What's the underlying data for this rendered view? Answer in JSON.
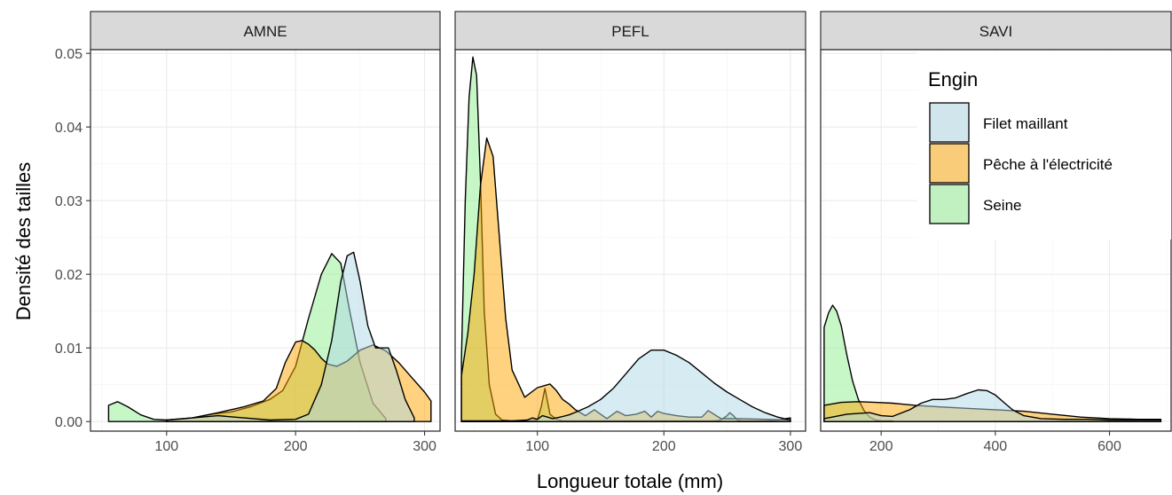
{
  "chart_data": {
    "type": "area",
    "subtype": "density-facets",
    "xlabel": "Longueur totale (mm)",
    "ylabel": "Densité des tailles",
    "ylim": [
      -0.0013,
      0.0505
    ],
    "yticks": [
      0.0,
      0.01,
      0.02,
      0.03,
      0.04,
      0.05
    ],
    "ytick_labels": [
      "0.00",
      "0.01",
      "0.02",
      "0.03",
      "0.04",
      "0.05"
    ],
    "grid": true,
    "legend": {
      "title": "Engin",
      "position": "top-right",
      "entries": [
        {
          "label": "Filet maillant",
          "color": "#add8e6"
        },
        {
          "label": "Pêche à l'électricité",
          "color": "#ffa500"
        },
        {
          "label": "Seine",
          "color": "#90ee90"
        }
      ]
    },
    "colors": {
      "Filet maillant": "#add8e6",
      "Pêche à l'électricité": "#ffa500",
      "Seine": "#90ee90"
    },
    "facets": [
      {
        "label": "AMNE",
        "xlim": [
          41,
          312
        ],
        "xticks": [
          100,
          200,
          300
        ],
        "xtick_labels": [
          "100",
          "200",
          "300"
        ],
        "series": [
          {
            "name": "Seine",
            "x": [
              55,
              62,
              70,
              80,
              90,
              100,
              110,
              120,
              135,
              150,
              165,
              180,
              190,
              200,
              210,
              220,
              228,
              235,
              242,
              250,
              260,
              270
            ],
            "y": [
              0.0022,
              0.0027,
              0.002,
              0.0009,
              0.0003,
              0.0002,
              0.0003,
              0.0005,
              0.001,
              0.0013,
              0.002,
              0.003,
              0.0042,
              0.0075,
              0.014,
              0.02,
              0.0228,
              0.0215,
              0.015,
              0.008,
              0.0025,
              0.0004
            ]
          },
          {
            "name": "Pêche à l'électricité",
            "x": [
              100,
              120,
              140,
              160,
              175,
              185,
              192,
              200,
              205,
              210,
              215,
              220,
              225,
              232,
              240,
              250,
              260,
              270,
              280,
              290,
              300,
              305
            ],
            "y": [
              0.0002,
              0.0005,
              0.0012,
              0.002,
              0.0028,
              0.0045,
              0.008,
              0.0108,
              0.011,
              0.0105,
              0.0097,
              0.0086,
              0.0078,
              0.0075,
              0.0082,
              0.0097,
              0.0104,
              0.0096,
              0.008,
              0.006,
              0.004,
              0.0028
            ]
          },
          {
            "name": "Filet maillant",
            "x": [
              100,
              120,
              140,
              160,
              180,
              200,
              210,
              220,
              228,
              235,
              240,
              245,
              250,
              256,
              262,
              268,
              272,
              278,
              285,
              292
            ],
            "y": [
              0.0002,
              0.0005,
              0.0008,
              0.0005,
              0.0002,
              0.0003,
              0.001,
              0.005,
              0.011,
              0.019,
              0.0225,
              0.023,
              0.019,
              0.013,
              0.01,
              0.01,
              0.01,
              0.007,
              0.003,
              0.0005
            ]
          }
        ]
      },
      {
        "label": "PEFL",
        "xlim": [
          35,
          312
        ],
        "xticks": [
          100,
          200,
          300
        ],
        "xtick_labels": [
          "100",
          "200",
          "300"
        ],
        "series": [
          {
            "name": "Seine",
            "x": [
              40,
              43,
              46,
              49,
              52,
              55,
              58,
              62,
              67,
              72,
              80,
              90,
              100,
              103,
              106,
              110,
              115,
              120,
              130,
              140,
              150,
              160,
              170,
              180,
              190,
              200,
              210,
              220,
              230,
              240,
              245,
              250,
              252,
              255,
              258,
              262,
              270,
              280,
              290,
              300
            ],
            "y": [
              0.0085,
              0.03,
              0.044,
              0.0495,
              0.047,
              0.033,
              0.015,
              0.005,
              0.001,
              0.0002,
              0.0001,
              0.0001,
              0.0002,
              0.002,
              0.0045,
              0.001,
              0.0003,
              0.0001,
              0.0001,
              0.0001,
              0.0001,
              0.0001,
              0.0001,
              0.0001,
              0.0001,
              0.0001,
              0.0001,
              0.0001,
              0.0001,
              0.0001,
              0.0002,
              0.0008,
              0.0012,
              0.0008,
              0.0002,
              0.0001,
              0.0001,
              0.0001,
              0.0002,
              0.0005
            ]
          },
          {
            "name": "Pêche à l'électricité",
            "x": [
              40,
              45,
              50,
              55,
              60,
              65,
              70,
              75,
              80,
              90,
              100,
              110,
              115,
              120,
              125,
              130,
              138,
              145,
              155,
              163,
              170,
              178,
              185,
              190,
              195,
              200,
              210,
              220,
              230,
              235,
              245,
              260,
              280,
              300
            ],
            "y": [
              0.0062,
              0.012,
              0.02,
              0.032,
              0.0385,
              0.036,
              0.025,
              0.014,
              0.007,
              0.0033,
              0.0046,
              0.0051,
              0.0042,
              0.003,
              0.0024,
              0.0016,
              0.0008,
              0.0016,
              0.0004,
              0.0014,
              0.0008,
              0.001,
              0.0014,
              0.0006,
              0.0014,
              0.0011,
              0.0008,
              0.0006,
              0.0006,
              0.0015,
              0.0004,
              0.0004,
              0.0003,
              0.0002
            ]
          },
          {
            "name": "Filet maillant",
            "x": [
              40,
              60,
              80,
              92,
              96,
              100,
              104,
              108,
              112,
              118,
              125,
              132,
              140,
              150,
              160,
              170,
              180,
              190,
              200,
              210,
              220,
              230,
              240,
              250,
              260,
              270,
              280,
              290,
              300
            ],
            "y": [
              0.0001,
              0.0001,
              0.0001,
              0.0002,
              0.0005,
              0.0003,
              0.0008,
              0.0006,
              0.0004,
              0.0006,
              0.0009,
              0.0014,
              0.002,
              0.003,
              0.0045,
              0.0065,
              0.0085,
              0.0097,
              0.0097,
              0.009,
              0.008,
              0.0066,
              0.0052,
              0.004,
              0.003,
              0.002,
              0.0012,
              0.0006,
              0.0002
            ]
          }
        ]
      },
      {
        "label": "SAVI",
        "xlim": [
          94,
          708
        ],
        "xticks": [
          200,
          400,
          600
        ],
        "xtick_labels": [
          "200",
          "400",
          "600"
        ],
        "series": [
          {
            "name": "Seine",
            "x": [
              100,
              108,
              115,
              122,
              130,
              140,
              150,
              160,
              170,
              180,
              190,
              200,
              210,
              220
            ],
            "y": [
              0.0128,
              0.0148,
              0.0158,
              0.015,
              0.013,
              0.009,
              0.0055,
              0.003,
              0.0015,
              0.0006,
              0.0002,
              0.0001,
              0.0001,
              0.0001
            ]
          },
          {
            "name": "Pêche à l'électricité",
            "x": [
              100,
              130,
              160,
              190,
              220,
              260,
              300,
              350,
              400,
              450,
              500,
              550,
              600,
              650,
              690
            ],
            "y": [
              0.0022,
              0.0026,
              0.0027,
              0.0026,
              0.0025,
              0.0022,
              0.002,
              0.0018,
              0.0016,
              0.0014,
              0.001,
              0.0006,
              0.0004,
              0.0003,
              0.0003
            ]
          },
          {
            "name": "Filet maillant",
            "x": [
              100,
              140,
              180,
              200,
              220,
              250,
              270,
              290,
              310,
              330,
              350,
              370,
              385,
              400,
              415,
              430,
              450,
              480,
              520,
              560,
              600,
              650,
              690
            ],
            "y": [
              0.0004,
              0.001,
              0.0012,
              0.0008,
              0.0007,
              0.0016,
              0.0025,
              0.003,
              0.003,
              0.0032,
              0.0038,
              0.0043,
              0.0042,
              0.0036,
              0.0026,
              0.0016,
              0.0008,
              0.0004,
              0.0003,
              0.0003,
              0.0002,
              0.0002,
              0.0002
            ]
          }
        ]
      }
    ]
  }
}
